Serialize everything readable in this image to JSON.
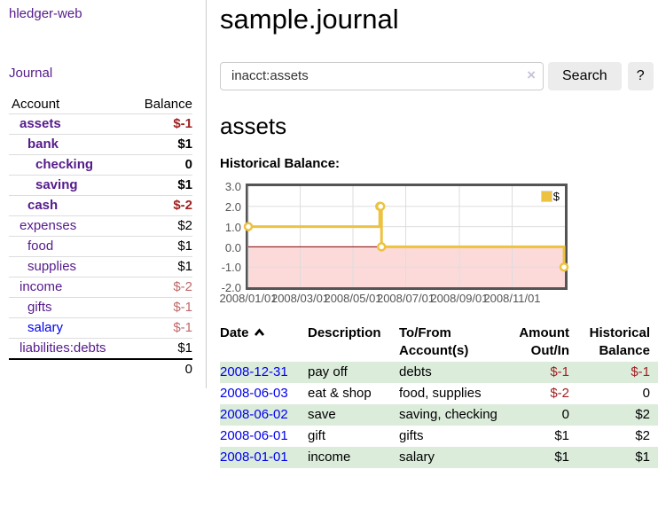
{
  "app": {
    "brand": "hledger-web"
  },
  "sidebar": {
    "journal_link": "Journal",
    "table": {
      "account_header": "Account",
      "balance_header": "Balance",
      "accounts": [
        {
          "name": "assets",
          "level": 1,
          "bold": true,
          "balance": "$-1",
          "balance_style": "neg"
        },
        {
          "name": "bank",
          "level": 2,
          "bold": true,
          "balance": "$1",
          "balance_style": "pos"
        },
        {
          "name": "checking",
          "level": 3,
          "bold": true,
          "balance": "0",
          "balance_style": "pos"
        },
        {
          "name": "saving",
          "level": 3,
          "bold": true,
          "balance": "$1",
          "balance_style": "pos"
        },
        {
          "name": "cash",
          "level": 2,
          "bold": true,
          "balance": "$-2",
          "balance_style": "neg"
        },
        {
          "name": "expenses",
          "level": 1,
          "bold": false,
          "balance": "$2",
          "balance_style": "pos"
        },
        {
          "name": "food",
          "level": 2,
          "bold": false,
          "balance": "$1",
          "balance_style": "pos"
        },
        {
          "name": "supplies",
          "level": 2,
          "bold": false,
          "balance": "$1",
          "balance_style": "pos"
        },
        {
          "name": "income",
          "level": 1,
          "bold": false,
          "balance": "$-2",
          "balance_style": "neg-light"
        },
        {
          "name": "gifts",
          "level": 2,
          "bold": false,
          "balance": "$-1",
          "balance_style": "neg-light"
        },
        {
          "name": "salary",
          "level": 2,
          "bold": false,
          "balance": "$-1",
          "balance_style": "neg-light"
        },
        {
          "name": "liabilities:debts",
          "level": 1,
          "bold": false,
          "balance": "$1",
          "balance_style": "pos"
        }
      ],
      "total": "0"
    }
  },
  "header": {
    "title": "sample.journal"
  },
  "search": {
    "value": "inacct:assets",
    "clear_icon": "×",
    "search_button": "Search",
    "help_button": "?"
  },
  "account_page": {
    "title": "assets",
    "chart_label": "Historical Balance:"
  },
  "chart_data": {
    "type": "line",
    "step": true,
    "title": "Historical Balance:",
    "series": [
      {
        "name": "$",
        "color": "#edc240",
        "points": [
          [
            "2008-01-01",
            1
          ],
          [
            "2008-06-01",
            2
          ],
          [
            "2008-06-02",
            2
          ],
          [
            "2008-06-03",
            0
          ],
          [
            "2008-12-31",
            -1
          ]
        ]
      }
    ],
    "x_ticks": [
      "2008/01/01",
      "2008/03/01",
      "2008/05/01",
      "2008/07/01",
      "2008/09/01",
      "2008/11/01"
    ],
    "y_ticks": [
      3.0,
      2.0,
      1.0,
      0.0,
      -1.0,
      -2.0
    ],
    "xlim": [
      "2008-01-01",
      "2009-01-01"
    ],
    "ylim": [
      -2,
      3
    ],
    "grid": true,
    "grid_color": "#dddddd",
    "zero_line_color": "#8b0000",
    "negative_region_color": "#fcdada",
    "legend_position": "top-right",
    "legend": "$"
  },
  "register": {
    "headers": {
      "date": "Date",
      "description": "Description",
      "accounts": "To/From Account(s)",
      "amount": "Amount Out/In",
      "balance": "Historical Balance"
    },
    "sort": "ascending",
    "rows": [
      {
        "date": "2008-12-31",
        "description": "pay off",
        "accounts": "debts",
        "amount": "$-1",
        "balance": "$-1"
      },
      {
        "date": "2008-06-03",
        "description": "eat & shop",
        "accounts": "food, supplies",
        "amount": "$-2",
        "balance": "0"
      },
      {
        "date": "2008-06-02",
        "description": "save",
        "accounts": "saving, checking",
        "amount": "0",
        "balance": "$2"
      },
      {
        "date": "2008-06-01",
        "description": "gift",
        "accounts": "gifts",
        "amount": "$1",
        "balance": "$2"
      },
      {
        "date": "2008-01-01",
        "description": "income",
        "accounts": "salary",
        "amount": "$1",
        "balance": "$1"
      }
    ]
  }
}
